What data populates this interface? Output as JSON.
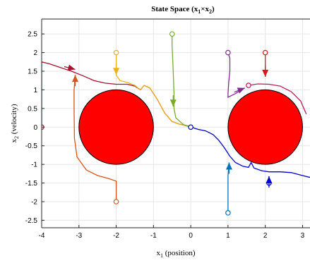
{
  "chart_data": {
    "type": "line",
    "title_main": "State Space (x",
    "title_sub1": "1",
    "title_times": "×x",
    "title_sub2": "2",
    "title_close": ")",
    "xlabel_main": "x",
    "xlabel_sub": "1",
    "xlabel_rest": " (position)",
    "ylabel_main": "x",
    "ylabel_sub": "2",
    "ylabel_rest": " (velocity)",
    "xlim": [
      -4,
      3.2
    ],
    "ylim": [
      -2.7,
      2.9
    ],
    "xticks": [
      -4,
      -3,
      -2,
      -1,
      0,
      1,
      2,
      3
    ],
    "xtick_labels": [
      "-4",
      "-3",
      "-2",
      "-1",
      "0",
      "1",
      "2",
      "3"
    ],
    "yticks": [
      -2.5,
      -2,
      -1.5,
      -1,
      -0.5,
      0,
      0.5,
      1,
      1.5,
      2,
      2.5
    ],
    "ytick_labels": [
      "-2.5",
      "-2",
      "-1.5",
      "-1",
      "-0.5",
      "0",
      "0.5",
      "1",
      "1.5",
      "2",
      "2.5"
    ],
    "grid": true,
    "obstacles": [
      {
        "center": [
          -2,
          0
        ],
        "radius": 1,
        "color": "#ff0000"
      },
      {
        "center": [
          2,
          0
        ],
        "radius": 1,
        "color": "#ff0000"
      }
    ],
    "series": [
      {
        "color": "#a2142f",
        "start": [
          -4,
          0
        ],
        "points": [
          [
            -4,
            0
          ],
          [
            -4,
            1.75
          ],
          [
            -3.8,
            1.7
          ],
          [
            -3.5,
            1.6
          ],
          [
            -3.2,
            1.5
          ],
          [
            -2.9,
            1.38
          ],
          [
            -2.6,
            1.25
          ],
          [
            -2.3,
            1.18
          ],
          [
            -2,
            1.15
          ],
          [
            -1.7,
            1.15
          ],
          [
            -1.5,
            1.1
          ],
          [
            -1.35,
            1.0
          ],
          [
            -1.25,
            1.12
          ],
          [
            -1.1,
            1.05
          ],
          [
            -0.9,
            0.75
          ],
          [
            -0.7,
            0.38
          ],
          [
            -0.5,
            0.15
          ],
          [
            -0.3,
            0.08
          ],
          [
            -0.1,
            0.04
          ],
          [
            0,
            0
          ]
        ]
      },
      {
        "color": "#edb120",
        "start": [
          -2,
          2
        ],
        "points": [
          [
            -2,
            2
          ],
          [
            -2,
            1.4
          ],
          [
            -1.9,
            1.25
          ],
          [
            -1.7,
            1.2
          ],
          [
            -1.5,
            1.12
          ],
          [
            -1.35,
            1.0
          ],
          [
            -1.25,
            1.12
          ],
          [
            -1.1,
            1.05
          ],
          [
            -0.9,
            0.75
          ],
          [
            -0.7,
            0.38
          ],
          [
            -0.5,
            0.15
          ],
          [
            -0.3,
            0.08
          ],
          [
            0,
            0
          ]
        ]
      },
      {
        "color": "#77ac30",
        "start": [
          -0.5,
          2.5
        ],
        "points": [
          [
            -0.5,
            2.5
          ],
          [
            -0.5,
            2.2
          ],
          [
            -0.47,
            1.5
          ],
          [
            -0.45,
            0.9
          ],
          [
            -0.45,
            0.5
          ],
          [
            -0.4,
            0.25
          ],
          [
            -0.2,
            0.07
          ],
          [
            0,
            0
          ]
        ]
      },
      {
        "color": "#d95319",
        "start": [
          -2,
          -2
        ],
        "points": [
          [
            -2,
            -2
          ],
          [
            -2,
            -1.45
          ],
          [
            -2.2,
            -1.38
          ],
          [
            -2.5,
            -1.3
          ],
          [
            -2.8,
            -1.15
          ],
          [
            -3.05,
            -0.8
          ],
          [
            -3.12,
            -0.3
          ],
          [
            -3.13,
            0.5
          ],
          [
            -3.13,
            1.0
          ],
          [
            -3.1,
            1.4
          ]
        ]
      },
      {
        "color": "#7e2f8e",
        "start": [
          1,
          2
        ],
        "points": [
          [
            1,
            2
          ],
          [
            1.05,
            1.85
          ],
          [
            1.05,
            1.5
          ],
          [
            1.02,
            1.2
          ],
          [
            1.0,
            0.9
          ],
          [
            1.0,
            0.8
          ],
          [
            1.2,
            0.9
          ],
          [
            1.45,
            1.05
          ]
        ]
      },
      {
        "color": "#d7191c",
        "start": [
          2,
          2
        ],
        "points": [
          [
            2,
            2
          ],
          [
            2,
            1.4
          ],
          [
            2.0,
            1.35
          ]
        ]
      },
      {
        "color": "#c2185b",
        "start": [
          1.55,
          1.12
        ],
        "points": [
          [
            1.55,
            1.12
          ],
          [
            1.8,
            1.16
          ],
          [
            2.1,
            1.15
          ],
          [
            2.4,
            1.1
          ],
          [
            2.7,
            0.95
          ],
          [
            2.95,
            0.7
          ],
          [
            3.1,
            0.35
          ]
        ]
      },
      {
        "color": "#0072bd",
        "start": [
          1,
          -2.3
        ],
        "points": [
          [
            1,
            -2.3
          ],
          [
            1,
            -1.75
          ],
          [
            1.0,
            -1.3
          ],
          [
            1.03,
            -0.95
          ]
        ]
      },
      {
        "color": "#0000cc",
        "start": [
          0,
          0
        ],
        "points": [
          [
            0,
            0
          ],
          [
            0.2,
            -0.06
          ],
          [
            0.4,
            -0.1
          ],
          [
            0.6,
            -0.2
          ],
          [
            0.75,
            -0.35
          ],
          [
            0.9,
            -0.55
          ],
          [
            1.05,
            -0.78
          ],
          [
            1.2,
            -0.95
          ],
          [
            1.4,
            -1.05
          ],
          [
            1.55,
            -1.08
          ],
          [
            1.62,
            -0.95
          ],
          [
            1.7,
            -1.1
          ],
          [
            1.9,
            -1.17
          ],
          [
            2.1,
            -1.2
          ],
          [
            2.4,
            -1.2
          ],
          [
            2.7,
            -1.22
          ],
          [
            3.0,
            -1.3
          ],
          [
            3.2,
            -1.35
          ]
        ]
      },
      {
        "color": "#0000cc",
        "start": [
          2.1,
          -1.5
        ],
        "points": [
          [
            2.1,
            -1.5
          ],
          [
            2.1,
            -1.32
          ]
        ]
      }
    ],
    "arrows": [
      {
        "color": "#a2142f",
        "at": [
          -3.1,
          1.55
        ],
        "dir": [
          1,
          -0.25
        ]
      },
      {
        "color": "#edb120",
        "at": [
          -2,
          1.4
        ],
        "dir": [
          0,
          -1
        ]
      },
      {
        "color": "#77ac30",
        "at": [
          -0.47,
          0.55
        ],
        "dir": [
          0,
          -1
        ]
      },
      {
        "color": "#d95319",
        "at": [
          -3.1,
          1.4
        ],
        "dir": [
          0,
          1
        ]
      },
      {
        "color": "#7e2f8e",
        "at": [
          1.45,
          1.05
        ],
        "dir": [
          1,
          0.4
        ]
      },
      {
        "color": "#d7191c",
        "at": [
          2,
          1.35
        ],
        "dir": [
          0,
          -1
        ]
      },
      {
        "color": "#0072bd",
        "at": [
          1.03,
          -0.95
        ],
        "dir": [
          0,
          1
        ]
      },
      {
        "color": "#0000cc",
        "at": [
          2.1,
          -1.32
        ],
        "dir": [
          0,
          1
        ]
      }
    ]
  }
}
